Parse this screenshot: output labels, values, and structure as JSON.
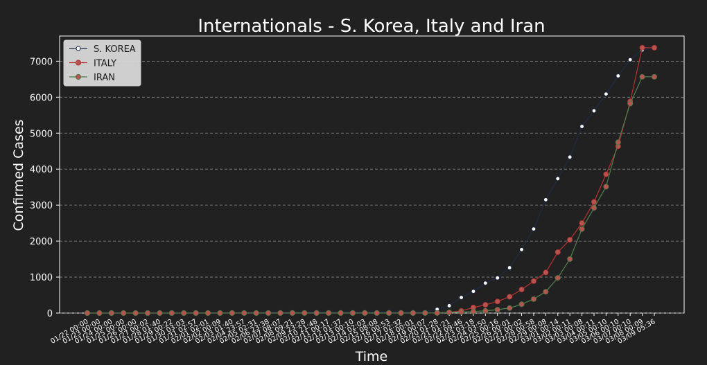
{
  "chart_data": {
    "type": "line",
    "title": "Internationals - S. Korea, Italy and Iran",
    "xlabel": "Time",
    "ylabel": "Confirmed Cases",
    "ylim": [
      0,
      7700
    ],
    "yticks": [
      0,
      1000,
      2000,
      3000,
      4000,
      5000,
      6000,
      7000
    ],
    "grid": "y-dashed",
    "legend_position": "top-left",
    "x_tick_labels": [
      "01/22 00:00",
      "01/23 00:00",
      "01/24 00:00",
      "01/25 00:00",
      "01/26 00:00",
      "01/27 00:02",
      "01/28 01:40",
      "01/29 00:22",
      "01/30 03:03",
      "01/31 02:57",
      "02/01 02:01",
      "02/02 00:09",
      "02/03 01:40",
      "02/04 23:57",
      "02/05 02:31",
      "02/06 23:38",
      "02/07 08:07",
      "02/08 09:21",
      "02/09 23:28",
      "02/10 21:48",
      "02/11 00:17",
      "02/12 01:37",
      "02/13 00:10",
      "02/14 02:03",
      "02/15 08:08",
      "02/16 00:53",
      "02/17 02:32",
      "02/18 00:01",
      "02/19 00:07",
      "02/20 01:28",
      "02/21 01:21",
      "02/22 09:46",
      "02/23 03:18",
      "02/24 03:50",
      "02/25 00:16",
      "02/26 00:01",
      "02/27 00:02",
      "02/28 00:58",
      "02/29 00:08",
      "03/01 00:14",
      "03/02 00:11",
      "03/03 00:08",
      "03/04 00:11",
      "03/05 00:10",
      "03/06 00:10",
      "03/07 00:10",
      "03/08 00:09",
      "03/09 05:36"
    ],
    "series": [
      {
        "name": "S. KOREA",
        "color": "#1f2a44",
        "marker_face": "#ffffff",
        "values": [
          1,
          1,
          2,
          2,
          3,
          4,
          4,
          4,
          4,
          11,
          12,
          15,
          15,
          16,
          19,
          23,
          24,
          24,
          25,
          27,
          28,
          28,
          28,
          28,
          28,
          29,
          30,
          31,
          31,
          104,
          204,
          433,
          602,
          833,
          977,
          1261,
          1766,
          2337,
          3150,
          3736,
          4335,
          5186,
          5621,
          6088,
          6593,
          7041,
          7314,
          7382
        ]
      },
      {
        "name": "ITALY",
        "color": "#b03030",
        "marker_face": "#b85450",
        "values": [
          0,
          0,
          0,
          0,
          0,
          0,
          0,
          0,
          0,
          2,
          2,
          2,
          2,
          2,
          2,
          2,
          3,
          3,
          3,
          3,
          3,
          3,
          3,
          3,
          3,
          3,
          3,
          3,
          3,
          3,
          20,
          62,
          155,
          229,
          322,
          453,
          655,
          888,
          1128,
          1694,
          2036,
          2502,
          3089,
          3858,
          4636,
          5883,
          7375,
          7375
        ]
      },
      {
        "name": "IRAN",
        "color": "#4a7a4a",
        "marker_face": "#b85450",
        "values": [
          0,
          0,
          0,
          0,
          0,
          0,
          0,
          0,
          0,
          0,
          0,
          0,
          0,
          0,
          0,
          0,
          0,
          0,
          0,
          0,
          0,
          0,
          0,
          0,
          0,
          0,
          0,
          0,
          2,
          5,
          18,
          28,
          43,
          61,
          95,
          139,
          245,
          388,
          593,
          978,
          1501,
          2336,
          2922,
          3513,
          4747,
          5823,
          6566,
          6566
        ]
      }
    ]
  }
}
